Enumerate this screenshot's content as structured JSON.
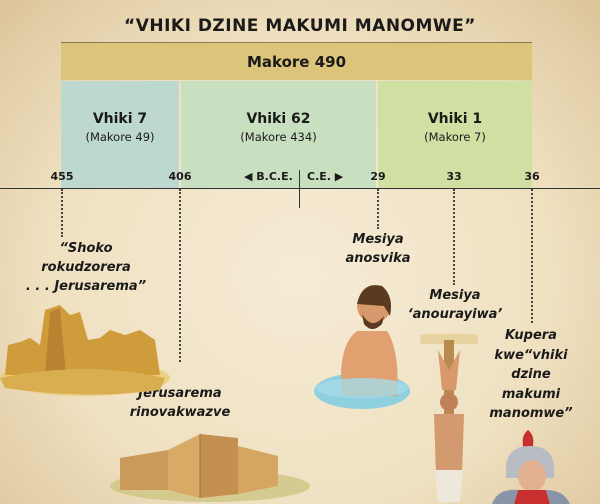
{
  "title": "“VHIKI DZINE MAKUMI MANOMWE”",
  "total_band": "Makore 490",
  "segments": [
    {
      "label": "Vhiki 7",
      "sub": "(Makore 49)",
      "color": "#bcd8d0"
    },
    {
      "label": "Vhiki 62",
      "sub": "(Makore 434)",
      "color": "#c8dfc0"
    },
    {
      "label": "Vhiki 1",
      "sub": "(Makore 7)",
      "color": "#cfe0a2"
    }
  ],
  "ticks": [
    "455",
    "406",
    "29",
    "33",
    "36"
  ],
  "era": {
    "bce": "◀ B.C.E.",
    "ce": "C.E. ▶"
  },
  "events": [
    {
      "lines": [
        "“Shoko",
        "rokudzorera",
        ". . . Jerusarema”"
      ],
      "image": "ruined-city-walls"
    },
    {
      "lines": [
        "Jerusarema",
        "rinovakwazve"
      ],
      "image": "rebuilt-city-walls"
    },
    {
      "lines": [
        "Mesiya",
        "anosvika"
      ],
      "image": "baptism-in-water"
    },
    {
      "lines": [
        "Mesiya",
        "‘anourayiwa’"
      ],
      "image": "man-on-stake"
    },
    {
      "lines": [
        "Kupera",
        "kwe“vhiki",
        "dzine",
        "makumi",
        "manomwe”"
      ],
      "image": "roman-soldier"
    }
  ]
}
